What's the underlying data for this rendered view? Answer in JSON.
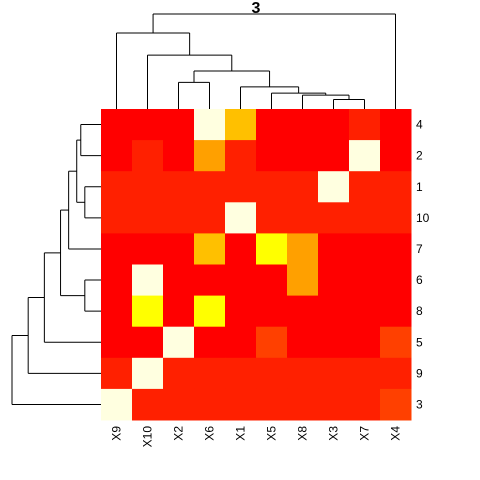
{
  "chart_data": {
    "type": "heatmap",
    "title": "3",
    "columns": [
      "X9",
      "X10",
      "X2",
      "X6",
      "X1",
      "X5",
      "X8",
      "X3",
      "X7",
      "X4"
    ],
    "rows": [
      "4",
      "2",
      "1",
      "10",
      "7",
      "6",
      "8",
      "5",
      "9",
      "3"
    ],
    "color_scale": [
      "#FF0000",
      "#FF2000",
      "#FF4000",
      "#FF6000",
      "#FFA000",
      "#FFC000",
      "#FFFF00",
      "#FFFFE0"
    ],
    "values": [
      [
        0,
        0,
        0,
        7,
        5,
        0,
        0,
        0,
        1,
        0
      ],
      [
        0,
        1,
        0,
        4,
        1,
        0,
        0,
        0,
        7,
        0
      ],
      [
        1,
        1,
        1,
        1,
        1,
        1,
        1,
        7,
        1,
        1
      ],
      [
        1,
        1,
        1,
        1,
        7,
        1,
        1,
        1,
        1,
        1
      ],
      [
        0,
        0,
        0,
        5,
        0,
        6,
        4,
        0,
        0,
        0
      ],
      [
        0,
        7,
        0,
        0,
        0,
        0,
        4,
        0,
        0,
        0
      ],
      [
        0,
        6,
        0,
        6,
        0,
        0,
        0,
        0,
        0,
        0
      ],
      [
        0,
        0,
        7,
        0,
        0,
        2,
        0,
        0,
        0,
        2
      ],
      [
        1,
        7,
        1,
        1,
        1,
        1,
        1,
        1,
        1,
        1
      ],
      [
        7,
        1,
        1,
        1,
        1,
        1,
        1,
        1,
        1,
        2
      ]
    ],
    "col_dendrogram": [
      [
        7,
        8
      ],
      [
        6,
        10
      ],
      [
        5,
        11
      ],
      [
        4,
        12
      ],
      [
        2,
        3
      ],
      [
        13,
        14
      ],
      [
        1,
        15
      ],
      [
        0,
        16
      ],
      [
        17,
        9
      ]
    ],
    "col_heights": [
      1.5,
      2.2,
      2.5,
      3.5,
      4.2,
      6,
      8.5,
      12,
      15
    ],
    "row_dendrogram": [
      [
        0,
        1
      ],
      [
        2,
        3
      ],
      [
        10,
        11
      ],
      [
        4,
        12
      ],
      [
        5,
        6
      ],
      [
        13,
        14
      ],
      [
        7,
        15
      ],
      [
        8,
        16
      ],
      [
        9,
        17
      ]
    ],
    "row_heights": [
      2.5,
      2,
      3,
      4,
      2,
      5,
      7,
      9,
      11
    ]
  }
}
